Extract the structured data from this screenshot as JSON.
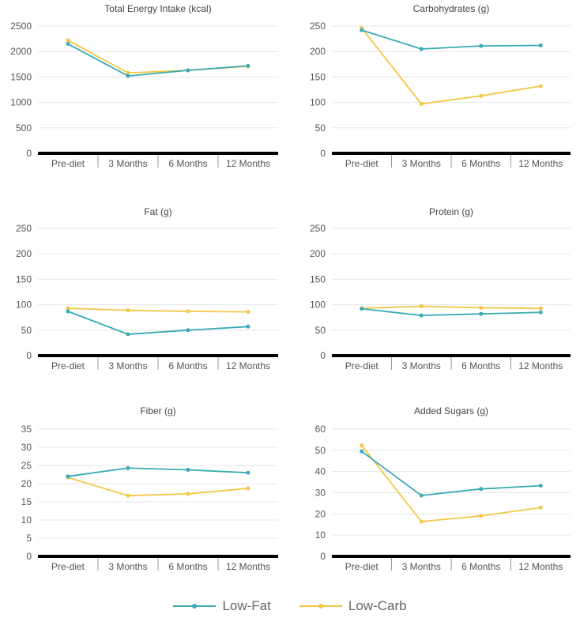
{
  "legend": [
    {
      "name": "Low-Fat",
      "color": "#3aaab5"
    },
    {
      "name": "Low-Carb",
      "color": "#f2c744"
    }
  ],
  "chart_data": [
    {
      "type": "line",
      "title": "Total Energy Intake (kcal)",
      "categories": [
        "Pre-diet",
        "3 Months",
        "6 Months",
        "12 Months"
      ],
      "yticks": [
        0,
        500,
        1000,
        1500,
        2000,
        2500
      ],
      "ylim": [
        0,
        2500
      ],
      "series": [
        {
          "name": "Low-Fat",
          "values": [
            2150,
            1520,
            1630,
            1720
          ]
        },
        {
          "name": "Low-Carb",
          "values": [
            2220,
            1580,
            1630,
            1710
          ]
        }
      ]
    },
    {
      "type": "line",
      "title": "Carbohydrates (g)",
      "categories": [
        "Pre-diet",
        "3 Months",
        "6 Months",
        "12 Months"
      ],
      "yticks": [
        0,
        50,
        100,
        150,
        200,
        250
      ],
      "ylim": [
        0,
        250
      ],
      "series": [
        {
          "name": "Low-Fat",
          "values": [
            242,
            205,
            211,
            212
          ]
        },
        {
          "name": "Low-Carb",
          "values": [
            246,
            97,
            113,
            132
          ]
        }
      ]
    },
    {
      "type": "line",
      "title": "Fat (g)",
      "categories": [
        "Pre-diet",
        "3 Months",
        "6 Months",
        "12 Months"
      ],
      "yticks": [
        0,
        50,
        100,
        150,
        200,
        250
      ],
      "ylim": [
        0,
        250
      ],
      "series": [
        {
          "name": "Low-Fat",
          "values": [
            87,
            42,
            50,
            57
          ]
        },
        {
          "name": "Low-Carb",
          "values": [
            93,
            89,
            87,
            86
          ]
        }
      ]
    },
    {
      "type": "line",
      "title": "Protein (g)",
      "categories": [
        "Pre-diet",
        "3 Months",
        "6 Months",
        "12 Months"
      ],
      "yticks": [
        0,
        50,
        100,
        150,
        200,
        250
      ],
      "ylim": [
        0,
        250
      ],
      "series": [
        {
          "name": "Low-Fat",
          "values": [
            92,
            79,
            82,
            85
          ]
        },
        {
          "name": "Low-Carb",
          "values": [
            93,
            97,
            94,
            93
          ]
        }
      ]
    },
    {
      "type": "line",
      "title": "Fiber (g)",
      "categories": [
        "Pre-diet",
        "3 Months",
        "6 Months",
        "12 Months"
      ],
      "yticks": [
        0,
        5,
        10,
        15,
        20,
        25,
        30,
        35
      ],
      "ylim": [
        0,
        35
      ],
      "series": [
        {
          "name": "Low-Fat",
          "values": [
            22,
            24.3,
            23.8,
            23
          ]
        },
        {
          "name": "Low-Carb",
          "values": [
            21.7,
            16.7,
            17.2,
            18.7
          ]
        }
      ]
    },
    {
      "type": "line",
      "title": "Added Sugars (g)",
      "categories": [
        "Pre-diet",
        "3 Months",
        "6 Months",
        "12 Months"
      ],
      "yticks": [
        0,
        10,
        20,
        30,
        40,
        50,
        60
      ],
      "ylim": [
        0,
        60
      ],
      "series": [
        {
          "name": "Low-Fat",
          "values": [
            49.5,
            28.7,
            31.8,
            33.3
          ]
        },
        {
          "name": "Low-Carb",
          "values": [
            52.3,
            16.4,
            19.1,
            23
          ]
        }
      ]
    }
  ]
}
